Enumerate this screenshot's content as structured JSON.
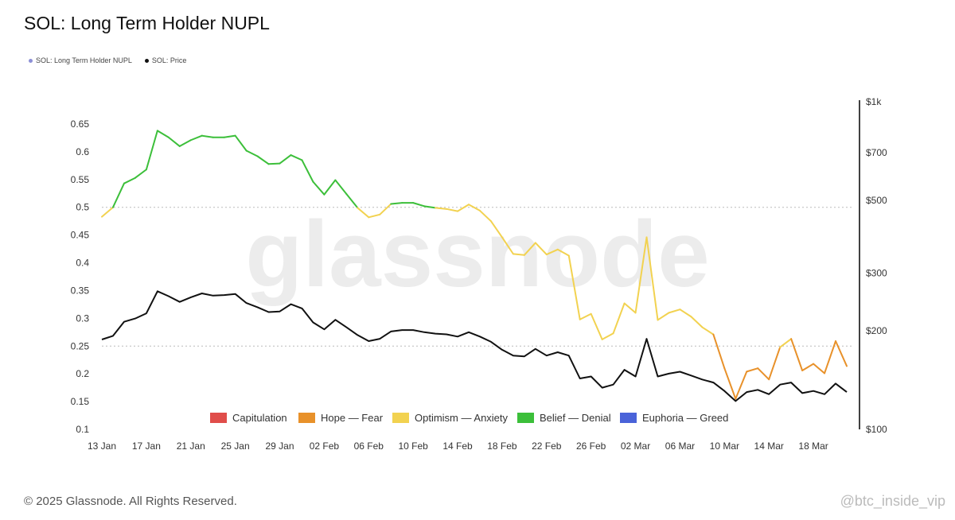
{
  "header": {
    "title": "SOL: Long Term Holder NUPL"
  },
  "legend": [
    {
      "label": "SOL: Long Term Holder NUPL",
      "color": "#8c8fd6"
    },
    {
      "label": "SOL: Price",
      "color": "#111111"
    }
  ],
  "watermark": "glassnode",
  "footer": {
    "copyright": "© 2025 Glassnode. All Rights Reserved.",
    "source": "@btc_inside_vip"
  },
  "chart_data": {
    "type": "line",
    "title": "SOL: Long Term Holder NUPL",
    "x_ticks": [
      "13 Jan",
      "17 Jan",
      "21 Jan",
      "25 Jan",
      "29 Jan",
      "02 Feb",
      "06 Feb",
      "10 Feb",
      "14 Feb",
      "18 Feb",
      "22 Feb",
      "26 Feb",
      "02 Mar",
      "06 Mar",
      "10 Mar",
      "14 Mar",
      "18 Mar"
    ],
    "x_start": "2025-01-13",
    "x_end": "2025-03-21",
    "left_axis": {
      "ticks": [
        "0.1",
        "0.15",
        "0.2",
        "0.25",
        "0.3",
        "0.35",
        "0.4",
        "0.45",
        "0.5",
        "0.55",
        "0.6",
        "0.65"
      ],
      "ylim": [
        0.1,
        0.65
      ]
    },
    "right_axis": {
      "scale": "log",
      "ticks": [
        {
          "label": "$100",
          "value": 100
        },
        {
          "label": "$200",
          "value": 200
        },
        {
          "label": "$300",
          "value": 300
        },
        {
          "label": "$500",
          "value": 500
        },
        {
          "label": "$700",
          "value": 700
        },
        {
          "label": "$1k",
          "value": 1000
        }
      ],
      "ylim": [
        100,
        1000
      ]
    },
    "reference_lines": [
      0.25,
      0.5
    ],
    "zones": [
      {
        "label": "Capitulation",
        "color": "#e04d4a",
        "max": 0
      },
      {
        "label": "Hope — Fear",
        "color": "#e8912a",
        "max": 0.25
      },
      {
        "label": "Optimism — Anxiety",
        "color": "#f2d250",
        "max": 0.5
      },
      {
        "label": "Belief — Denial",
        "color": "#3cbf3a",
        "max": 0.75
      },
      {
        "label": "Euphoria — Greed",
        "color": "#4a63d9",
        "max": 1
      }
    ],
    "series": [
      {
        "name": "SOL: Long Term Holder NUPL",
        "axis": "left",
        "values": [
          0.483,
          0.5,
          0.543,
          0.553,
          0.568,
          0.638,
          0.626,
          0.61,
          0.621,
          0.629,
          0.626,
          0.626,
          0.629,
          0.602,
          0.592,
          0.578,
          0.579,
          0.594,
          0.585,
          0.546,
          0.523,
          0.549,
          0.524,
          0.499,
          0.482,
          0.487,
          0.506,
          0.508,
          0.508,
          0.502,
          0.499,
          0.497,
          0.493,
          0.505,
          0.494,
          0.475,
          0.446,
          0.416,
          0.414,
          0.436,
          0.415,
          0.424,
          0.413,
          0.298,
          0.308,
          0.262,
          0.273,
          0.327,
          0.31,
          0.446,
          0.297,
          0.31,
          0.316,
          0.303,
          0.284,
          0.271,
          0.21,
          0.155,
          0.204,
          0.21,
          0.19,
          0.248,
          0.263,
          0.206,
          0.218,
          0.201,
          0.259,
          0.214
        ]
      },
      {
        "name": "SOL: Price",
        "axis": "right",
        "values": [
          188,
          193,
          213,
          218,
          226,
          264,
          255,
          245,
          253,
          260,
          256,
          257,
          259,
          243,
          236,
          228,
          229,
          241,
          234,
          212,
          202,
          216,
          205,
          194,
          186,
          189,
          199,
          201,
          201,
          198,
          196,
          195,
          192,
          198,
          192,
          185,
          175,
          168,
          167,
          176,
          168,
          172,
          168,
          143,
          145,
          134,
          137,
          152,
          145,
          189,
          145,
          148,
          150,
          146,
          142,
          139,
          131,
          122,
          130,
          132,
          128,
          137,
          139,
          129,
          131,
          128,
          138,
          130
        ]
      }
    ]
  }
}
